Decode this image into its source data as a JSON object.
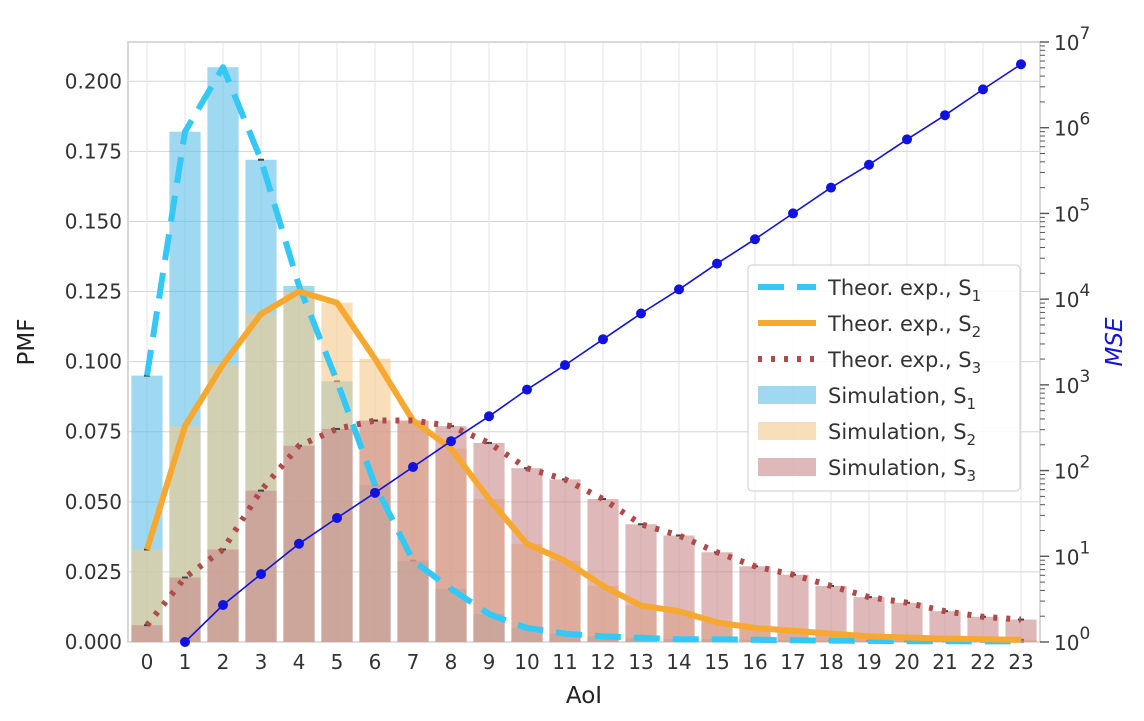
{
  "chart_data": {
    "type": "bar",
    "xlabel": "AoI",
    "ylabel": "PMF",
    "y2label": "MSE",
    "categories": [
      "0",
      "1",
      "2",
      "3",
      "4",
      "5",
      "6",
      "7",
      "8",
      "9",
      "10",
      "11",
      "12",
      "13",
      "14",
      "15",
      "16",
      "17",
      "18",
      "19",
      "20",
      "21",
      "22",
      "23"
    ],
    "ylim": [
      0,
      0.214
    ],
    "yticks": [
      "0.000",
      "0.025",
      "0.050",
      "0.075",
      "0.100",
      "0.125",
      "0.150",
      "0.175",
      "0.200"
    ],
    "y2_scale": "log",
    "y2lim": [
      1,
      10000000
    ],
    "y2ticks": [
      {
        "base": "10",
        "exp": "0"
      },
      {
        "base": "10",
        "exp": "1"
      },
      {
        "base": "10",
        "exp": "2"
      },
      {
        "base": "10",
        "exp": "3"
      },
      {
        "base": "10",
        "exp": "4"
      },
      {
        "base": "10",
        "exp": "5"
      },
      {
        "base": "10",
        "exp": "6"
      },
      {
        "base": "10",
        "exp": "7"
      }
    ],
    "grid": true,
    "legend_position": "center-right",
    "bar_series": [
      {
        "name": "Simulation, S",
        "sub": "1",
        "color": "#5ec0e8",
        "values": [
          0.095,
          0.182,
          0.205,
          0.172,
          0.127,
          0.093,
          0.056,
          0.029,
          0.019,
          0.01,
          0.005,
          0.003,
          0.002,
          0.0015,
          0.001,
          0.001,
          0.0008,
          0.0006,
          0.0005,
          0.0004,
          0.0003,
          0.0003,
          0.0002,
          0.0002
        ]
      },
      {
        "name": "Simulation, S",
        "sub": "2",
        "color": "#f5c98a",
        "values": [
          0.033,
          0.077,
          0.099,
          0.117,
          0.125,
          0.121,
          0.101,
          0.079,
          0.069,
          0.051,
          0.035,
          0.029,
          0.02,
          0.013,
          0.011,
          0.007,
          0.005,
          0.004,
          0.003,
          0.002,
          0.0016,
          0.0012,
          0.001,
          0.0008
        ]
      },
      {
        "name": "Simulation, S",
        "sub": "3",
        "color": "#c98a8a",
        "values": [
          0.006,
          0.023,
          0.033,
          0.054,
          0.07,
          0.076,
          0.079,
          0.079,
          0.077,
          0.071,
          0.062,
          0.058,
          0.051,
          0.042,
          0.038,
          0.032,
          0.027,
          0.024,
          0.02,
          0.016,
          0.014,
          0.011,
          0.009,
          0.008
        ]
      }
    ],
    "line_series": [
      {
        "name": "Theor. exp., S",
        "sub": "1",
        "color": "#33c8f5",
        "dash": "26 13",
        "width": 6,
        "values": [
          0.095,
          0.182,
          0.205,
          0.172,
          0.127,
          0.093,
          0.056,
          0.029,
          0.019,
          0.01,
          0.005,
          0.003,
          0.002,
          0.0015,
          0.001,
          0.001,
          0.0008,
          0.0006,
          0.0005,
          0.0004,
          0.0003,
          0.0003,
          0.0002,
          0.0002
        ]
      },
      {
        "name": "Theor. exp., S",
        "sub": "2",
        "color": "#f7a830",
        "dash": "",
        "width": 6,
        "values": [
          0.033,
          0.077,
          0.099,
          0.117,
          0.125,
          0.121,
          0.101,
          0.079,
          0.069,
          0.051,
          0.035,
          0.029,
          0.02,
          0.013,
          0.011,
          0.007,
          0.005,
          0.004,
          0.003,
          0.002,
          0.0016,
          0.0012,
          0.001,
          0.0008
        ]
      },
      {
        "name": "Theor. exp., S",
        "sub": "3",
        "color": "#b04a4a",
        "dash": "4 9",
        "width": 6,
        "values": [
          0.006,
          0.023,
          0.033,
          0.054,
          0.07,
          0.076,
          0.079,
          0.079,
          0.077,
          0.071,
          0.062,
          0.058,
          0.051,
          0.042,
          0.038,
          0.032,
          0.027,
          0.024,
          0.02,
          0.016,
          0.014,
          0.011,
          0.009,
          0.008
        ]
      }
    ],
    "mse_series": {
      "color": "#1111e0",
      "x": [
        1,
        2,
        3,
        4,
        5,
        6,
        7,
        8,
        9,
        10,
        11,
        12,
        13,
        14,
        15,
        16,
        17,
        18,
        19,
        20,
        21,
        22,
        23
      ],
      "values": [
        1,
        2.7,
        6.2,
        14,
        28,
        55,
        110,
        220,
        430,
        880,
        1700,
        3400,
        6800,
        13000,
        26000,
        50000,
        100000,
        200000,
        370000,
        730000,
        1400000,
        2800000,
        5500000
      ]
    }
  }
}
